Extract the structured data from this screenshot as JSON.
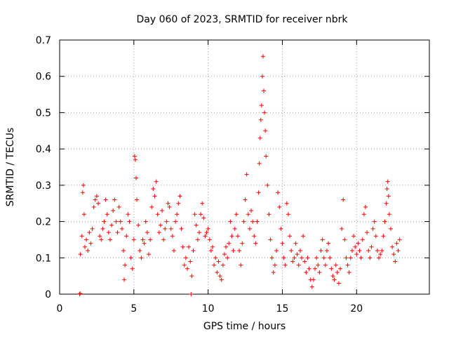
{
  "chart_data": {
    "type": "scatter",
    "title": "Day 060 of 2023, SRMTID for receiver nbrk",
    "xlabel": "GPS time / hours",
    "ylabel": "SRMTID / TECUs",
    "xlim": [
      0,
      24.9
    ],
    "ylim": [
      0,
      0.7
    ],
    "x_ticks": [
      0,
      5,
      10,
      15,
      20
    ],
    "x_tick_labels": [
      "0",
      "5",
      "10",
      "15",
      "20"
    ],
    "y_ticks": [
      0,
      0.1,
      0.2,
      0.3,
      0.4,
      0.5,
      0.6,
      0.7
    ],
    "y_tick_labels": [
      "0",
      "0.1",
      "0.2",
      "0.3",
      "0.4",
      "0.5",
      "0.6",
      "0.7"
    ],
    "grid": true,
    "marker": "+",
    "color": "#ff0000",
    "series": [
      {
        "name": "SRMTID",
        "points": [
          [
            1.35,
            0.0
          ],
          [
            1.38,
            0.002
          ],
          [
            8.85,
            0.0
          ],
          [
            1.4,
            0.11
          ],
          [
            1.5,
            0.16
          ],
          [
            1.55,
            0.28
          ],
          [
            1.6,
            0.3
          ],
          [
            1.65,
            0.22
          ],
          [
            1.7,
            0.13
          ],
          [
            1.8,
            0.15
          ],
          [
            1.9,
            0.12
          ],
          [
            2.0,
            0.17
          ],
          [
            2.1,
            0.14
          ],
          [
            2.2,
            0.18
          ],
          [
            2.3,
            0.24
          ],
          [
            2.4,
            0.26
          ],
          [
            2.5,
            0.27
          ],
          [
            2.6,
            0.25
          ],
          [
            2.7,
            0.16
          ],
          [
            2.8,
            0.15
          ],
          [
            2.9,
            0.18
          ],
          [
            3.0,
            0.2
          ],
          [
            3.1,
            0.26
          ],
          [
            3.2,
            0.22
          ],
          [
            3.3,
            0.17
          ],
          [
            3.4,
            0.15
          ],
          [
            3.5,
            0.19
          ],
          [
            3.6,
            0.23
          ],
          [
            3.7,
            0.26
          ],
          [
            3.8,
            0.2
          ],
          [
            3.9,
            0.17
          ],
          [
            4.0,
            0.24
          ],
          [
            4.1,
            0.2
          ],
          [
            4.2,
            0.18
          ],
          [
            4.3,
            0.12
          ],
          [
            4.35,
            0.04
          ],
          [
            4.4,
            0.08
          ],
          [
            4.5,
            0.16
          ],
          [
            4.6,
            0.22
          ],
          [
            4.7,
            0.2
          ],
          [
            4.8,
            0.1
          ],
          [
            4.9,
            0.07
          ],
          [
            5.0,
            0.15
          ],
          [
            5.05,
            0.38
          ],
          [
            5.1,
            0.37
          ],
          [
            5.15,
            0.32
          ],
          [
            5.2,
            0.26
          ],
          [
            5.3,
            0.19
          ],
          [
            5.4,
            0.12
          ],
          [
            5.5,
            0.1
          ],
          [
            5.6,
            0.15
          ],
          [
            5.7,
            0.14
          ],
          [
            5.8,
            0.2
          ],
          [
            5.9,
            0.17
          ],
          [
            6.0,
            0.11
          ],
          [
            6.1,
            0.15
          ],
          [
            6.2,
            0.24
          ],
          [
            6.3,
            0.29
          ],
          [
            6.4,
            0.27
          ],
          [
            6.5,
            0.31
          ],
          [
            6.6,
            0.22
          ],
          [
            6.7,
            0.17
          ],
          [
            6.8,
            0.19
          ],
          [
            6.9,
            0.23
          ],
          [
            7.0,
            0.15
          ],
          [
            7.1,
            0.18
          ],
          [
            7.2,
            0.2
          ],
          [
            7.3,
            0.25
          ],
          [
            7.4,
            0.24
          ],
          [
            7.5,
            0.18
          ],
          [
            7.6,
            0.16
          ],
          [
            7.7,
            0.12
          ],
          [
            7.8,
            0.2
          ],
          [
            7.9,
            0.22
          ],
          [
            8.0,
            0.25
          ],
          [
            8.1,
            0.27
          ],
          [
            8.2,
            0.18
          ],
          [
            8.3,
            0.13
          ],
          [
            8.4,
            0.08
          ],
          [
            8.5,
            0.1
          ],
          [
            8.6,
            0.07
          ],
          [
            8.7,
            0.13
          ],
          [
            8.8,
            0.09
          ],
          [
            8.9,
            0.05
          ],
          [
            9.0,
            0.12
          ],
          [
            9.1,
            0.22
          ],
          [
            9.2,
            0.19
          ],
          [
            9.3,
            0.15
          ],
          [
            9.4,
            0.17
          ],
          [
            9.5,
            0.22
          ],
          [
            9.6,
            0.25
          ],
          [
            9.7,
            0.21
          ],
          [
            9.8,
            0.16
          ],
          [
            9.9,
            0.17
          ],
          [
            10.0,
            0.18
          ],
          [
            10.1,
            0.15
          ],
          [
            10.2,
            0.12
          ],
          [
            10.3,
            0.13
          ],
          [
            10.4,
            0.08
          ],
          [
            10.5,
            0.1
          ],
          [
            10.6,
            0.06
          ],
          [
            10.7,
            0.09
          ],
          [
            10.8,
            0.05
          ],
          [
            10.9,
            0.04
          ],
          [
            11.0,
            0.08
          ],
          [
            11.1,
            0.11
          ],
          [
            11.2,
            0.13
          ],
          [
            11.3,
            0.1
          ],
          [
            11.4,
            0.14
          ],
          [
            11.5,
            0.2
          ],
          [
            11.6,
            0.16
          ],
          [
            11.7,
            0.12
          ],
          [
            11.8,
            0.18
          ],
          [
            11.9,
            0.22
          ],
          [
            12.0,
            0.16
          ],
          [
            12.1,
            0.12
          ],
          [
            12.2,
            0.08
          ],
          [
            12.3,
            0.14
          ],
          [
            12.4,
            0.2
          ],
          [
            12.5,
            0.26
          ],
          [
            12.6,
            0.33
          ],
          [
            12.7,
            0.22
          ],
          [
            12.8,
            0.18
          ],
          [
            12.9,
            0.23
          ],
          [
            13.0,
            0.2
          ],
          [
            13.1,
            0.16
          ],
          [
            13.2,
            0.14
          ],
          [
            13.3,
            0.2
          ],
          [
            13.4,
            0.28
          ],
          [
            13.45,
            0.36
          ],
          [
            13.5,
            0.43
          ],
          [
            13.55,
            0.48
          ],
          [
            13.6,
            0.52
          ],
          [
            13.65,
            0.6
          ],
          [
            13.7,
            0.655
          ],
          [
            13.75,
            0.56
          ],
          [
            13.8,
            0.5
          ],
          [
            13.85,
            0.45
          ],
          [
            13.9,
            0.38
          ],
          [
            14.0,
            0.3
          ],
          [
            14.1,
            0.22
          ],
          [
            14.2,
            0.15
          ],
          [
            14.3,
            0.1
          ],
          [
            14.4,
            0.06
          ],
          [
            14.5,
            0.08
          ],
          [
            14.6,
            0.12
          ],
          [
            14.7,
            0.28
          ],
          [
            14.8,
            0.24
          ],
          [
            14.9,
            0.18
          ],
          [
            15.0,
            0.14
          ],
          [
            15.1,
            0.1
          ],
          [
            15.2,
            0.08
          ],
          [
            15.3,
            0.25
          ],
          [
            15.4,
            0.22
          ],
          [
            15.5,
            0.16
          ],
          [
            15.6,
            0.12
          ],
          [
            15.7,
            0.09
          ],
          [
            15.8,
            0.1
          ],
          [
            15.9,
            0.14
          ],
          [
            16.0,
            0.11
          ],
          [
            16.1,
            0.08
          ],
          [
            16.2,
            0.12
          ],
          [
            16.3,
            0.1
          ],
          [
            16.4,
            0.16
          ],
          [
            16.5,
            0.09
          ],
          [
            16.6,
            0.06
          ],
          [
            16.7,
            0.1
          ],
          [
            16.8,
            0.07
          ],
          [
            16.9,
            0.04
          ],
          [
            17.0,
            0.02
          ],
          [
            17.1,
            0.04
          ],
          [
            17.2,
            0.07
          ],
          [
            17.3,
            0.1
          ],
          [
            17.4,
            0.08
          ],
          [
            17.5,
            0.06
          ],
          [
            17.6,
            0.12
          ],
          [
            17.7,
            0.15
          ],
          [
            17.8,
            0.1
          ],
          [
            17.9,
            0.08
          ],
          [
            18.0,
            0.12
          ],
          [
            18.1,
            0.14
          ],
          [
            18.2,
            0.1
          ],
          [
            18.3,
            0.07
          ],
          [
            18.4,
            0.05
          ],
          [
            18.5,
            0.04
          ],
          [
            18.6,
            0.08
          ],
          [
            18.7,
            0.06
          ],
          [
            18.8,
            0.03
          ],
          [
            18.9,
            0.07
          ],
          [
            19.0,
            0.18
          ],
          [
            19.1,
            0.26
          ],
          [
            19.2,
            0.15
          ],
          [
            19.3,
            0.1
          ],
          [
            19.4,
            0.08
          ],
          [
            19.5,
            0.06
          ],
          [
            19.6,
            0.1
          ],
          [
            19.7,
            0.12
          ],
          [
            19.8,
            0.16
          ],
          [
            19.9,
            0.13
          ],
          [
            20.0,
            0.11
          ],
          [
            20.1,
            0.14
          ],
          [
            20.2,
            0.12
          ],
          [
            20.3,
            0.1
          ],
          [
            20.4,
            0.15
          ],
          [
            20.5,
            0.22
          ],
          [
            20.6,
            0.24
          ],
          [
            20.7,
            0.17
          ],
          [
            20.8,
            0.12
          ],
          [
            20.9,
            0.1
          ],
          [
            21.0,
            0.13
          ],
          [
            21.1,
            0.18
          ],
          [
            21.2,
            0.2
          ],
          [
            21.3,
            0.16
          ],
          [
            21.4,
            0.12
          ],
          [
            21.5,
            0.1
          ],
          [
            21.6,
            0.11
          ],
          [
            21.7,
            0.12
          ],
          [
            21.8,
            0.16
          ],
          [
            21.9,
            0.2
          ],
          [
            22.0,
            0.25
          ],
          [
            22.05,
            0.29
          ],
          [
            22.1,
            0.31
          ],
          [
            22.15,
            0.27
          ],
          [
            22.2,
            0.22
          ],
          [
            22.3,
            0.18
          ],
          [
            22.4,
            0.13
          ],
          [
            22.5,
            0.11
          ],
          [
            22.6,
            0.09
          ],
          [
            22.7,
            0.14
          ],
          [
            22.8,
            0.12
          ],
          [
            22.9,
            0.15
          ]
        ]
      }
    ]
  }
}
